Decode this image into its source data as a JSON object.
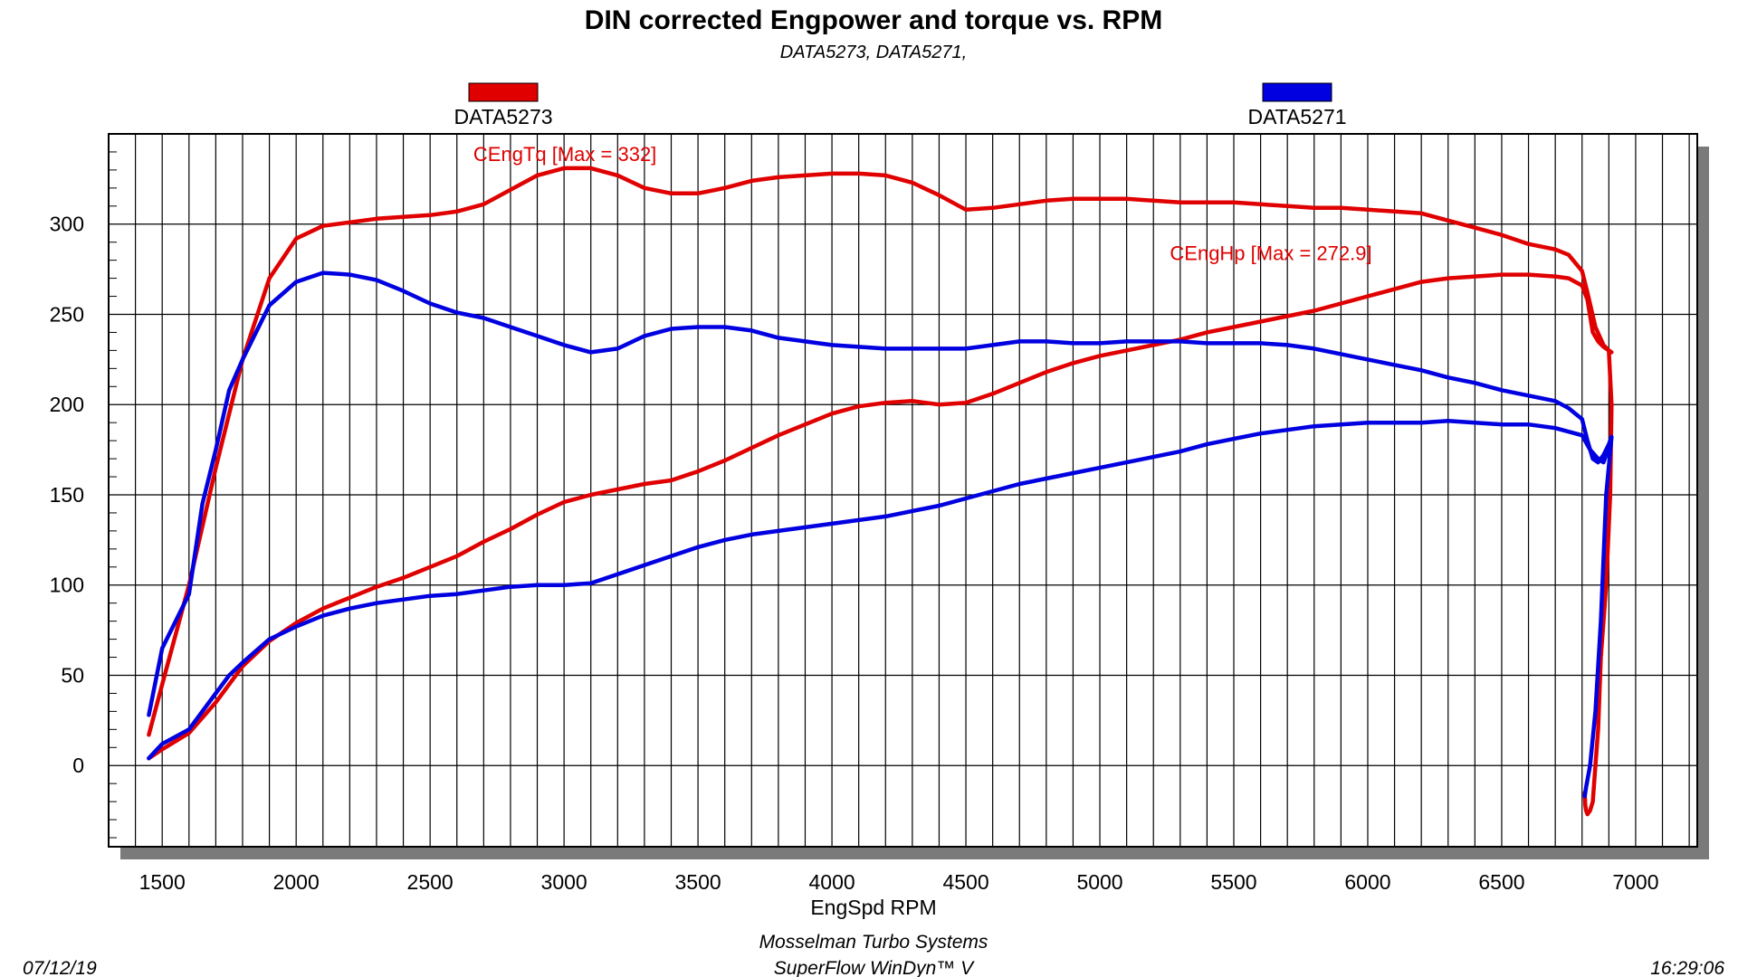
{
  "chart_data": {
    "type": "line",
    "title": "DIN corrected Engpower and torque vs. RPM",
    "subtitle": "DATA5273, DATA5271,",
    "xlabel": "EngSpd  RPM",
    "ylabel": "",
    "xlim": [
      1300,
      7230
    ],
    "ylim": [
      -45,
      350
    ],
    "xticks": [
      1500,
      2000,
      2500,
      3000,
      3500,
      4000,
      4500,
      5000,
      5500,
      6000,
      6500,
      7000
    ],
    "yticks": [
      0,
      50,
      100,
      150,
      200,
      250,
      300
    ],
    "grid": true,
    "legend": [
      {
        "name": "DATA5273",
        "color": "#e00000"
      },
      {
        "name": "DATA5271",
        "color": "#0000e0"
      }
    ],
    "annotations": [
      {
        "text": "CEngTq [Max = 332]",
        "x": 3050,
        "y": 332,
        "color": "#e00000"
      },
      {
        "text": "CEngHp [Max = 272.9]",
        "x": 5650,
        "y": 277,
        "color": "#e00000"
      }
    ],
    "series": [
      {
        "name": "DATA5273 CEngTq",
        "color": "#e00000",
        "x": [
          1450,
          1500,
          1600,
          1700,
          1800,
          1900,
          2000,
          2100,
          2200,
          2300,
          2400,
          2500,
          2600,
          2700,
          2800,
          2900,
          3000,
          3100,
          3200,
          3300,
          3400,
          3500,
          3600,
          3700,
          3800,
          3900,
          4000,
          4100,
          4200,
          4300,
          4400,
          4500,
          4600,
          4700,
          4800,
          4900,
          5000,
          5100,
          5200,
          5300,
          5400,
          5500,
          5600,
          5700,
          5800,
          5900,
          6000,
          6100,
          6200,
          6300,
          6400,
          6500,
          6600,
          6700,
          6750,
          6800,
          6820,
          6850,
          6880,
          6900,
          6910
        ],
        "values": [
          17,
          45,
          100,
          165,
          225,
          270,
          292,
          299,
          301,
          303,
          304,
          305,
          307,
          311,
          319,
          327,
          331,
          331,
          327,
          320,
          317,
          317,
          320,
          324,
          326,
          327,
          328,
          328,
          327,
          323,
          316,
          308,
          309,
          311,
          313,
          314,
          314,
          314,
          313,
          312,
          312,
          312,
          311,
          310,
          309,
          309,
          308,
          307,
          306,
          302,
          298,
          294,
          289,
          286,
          283,
          274,
          262,
          243,
          233,
          230,
          229
        ]
      },
      {
        "name": "DATA5273 CEngHp",
        "color": "#e00000",
        "x": [
          1450,
          1500,
          1600,
          1700,
          1800,
          1900,
          2000,
          2100,
          2200,
          2300,
          2400,
          2500,
          2600,
          2700,
          2800,
          2900,
          3000,
          3100,
          3200,
          3300,
          3400,
          3500,
          3600,
          3700,
          3800,
          3900,
          4000,
          4100,
          4200,
          4300,
          4400,
          4500,
          4600,
          4700,
          4800,
          4900,
          5000,
          5100,
          5200,
          5300,
          5400,
          5500,
          5600,
          5700,
          5800,
          5900,
          6000,
          6100,
          6200,
          6300,
          6400,
          6500,
          6600,
          6700,
          6750,
          6800,
          6820,
          6840,
          6860,
          6880,
          6900,
          6910,
          6905,
          6890,
          6870,
          6860,
          6850,
          6840,
          6830,
          6820,
          6815,
          6812,
          6810
        ],
        "values": [
          4,
          9,
          18,
          35,
          55,
          69,
          79,
          87,
          93,
          99,
          104,
          110,
          116,
          124,
          131,
          139,
          146,
          150,
          153,
          156,
          158,
          163,
          169,
          176,
          183,
          189,
          195,
          199,
          201,
          202,
          200,
          201,
          206,
          212,
          218,
          223,
          227,
          230,
          233,
          236,
          240,
          243,
          246,
          249,
          252,
          256,
          260,
          264,
          268,
          270,
          271,
          272,
          272,
          271,
          270,
          266,
          258,
          240,
          235,
          232,
          230,
          200,
          150,
          100,
          60,
          20,
          0,
          -20,
          -25,
          -27,
          -25,
          -22,
          -15
        ]
      },
      {
        "name": "DATA5271 CEngTq",
        "color": "#0000e0",
        "x": [
          1450,
          1500,
          1600,
          1650,
          1700,
          1750,
          1800,
          1900,
          2000,
          2100,
          2200,
          2300,
          2400,
          2500,
          2600,
          2700,
          2800,
          2900,
          3000,
          3100,
          3200,
          3300,
          3400,
          3500,
          3600,
          3700,
          3800,
          3900,
          4000,
          4100,
          4200,
          4300,
          4400,
          4500,
          4600,
          4700,
          4800,
          4900,
          5000,
          5100,
          5200,
          5300,
          5400,
          5500,
          5600,
          5700,
          5800,
          5900,
          6000,
          6100,
          6200,
          6300,
          6400,
          6500,
          6600,
          6700,
          6750,
          6800,
          6820,
          6840,
          6860,
          6880,
          6900,
          6910
        ],
        "values": [
          28,
          65,
          95,
          145,
          175,
          208,
          225,
          255,
          268,
          273,
          272,
          269,
          263,
          256,
          251,
          248,
          243,
          238,
          233,
          229,
          231,
          238,
          242,
          243,
          243,
          241,
          237,
          235,
          233,
          232,
          231,
          231,
          231,
          231,
          233,
          235,
          235,
          234,
          234,
          235,
          235,
          235,
          234,
          234,
          234,
          233,
          231,
          228,
          225,
          222,
          219,
          215,
          212,
          208,
          205,
          202,
          198,
          192,
          180,
          170,
          168,
          172,
          178,
          182
        ]
      },
      {
        "name": "DATA5271 CEngHp",
        "color": "#0000e0",
        "x": [
          1450,
          1500,
          1600,
          1700,
          1750,
          1800,
          1900,
          2000,
          2100,
          2200,
          2300,
          2400,
          2500,
          2600,
          2700,
          2800,
          2900,
          3000,
          3100,
          3200,
          3300,
          3400,
          3500,
          3600,
          3700,
          3800,
          3900,
          4000,
          4100,
          4200,
          4300,
          4400,
          4500,
          4600,
          4700,
          4800,
          4900,
          5000,
          5100,
          5200,
          5300,
          5400,
          5500,
          5600,
          5700,
          5800,
          5900,
          6000,
          6100,
          6200,
          6300,
          6400,
          6500,
          6600,
          6700,
          6750,
          6800,
          6830,
          6860,
          6880,
          6900,
          6910,
          6890,
          6870,
          6850,
          6830,
          6815,
          6810
        ],
        "values": [
          4,
          12,
          20,
          40,
          50,
          57,
          70,
          77,
          83,
          87,
          90,
          92,
          94,
          95,
          97,
          99,
          100,
          100,
          101,
          106,
          111,
          116,
          121,
          125,
          128,
          130,
          132,
          134,
          136,
          138,
          141,
          144,
          148,
          152,
          156,
          159,
          162,
          165,
          168,
          171,
          174,
          178,
          181,
          184,
          186,
          188,
          189,
          190,
          190,
          190,
          191,
          190,
          189,
          189,
          187,
          185,
          183,
          175,
          170,
          168,
          176,
          182,
          150,
          80,
          30,
          0,
          -12,
          -17
        ]
      }
    ],
    "footer": {
      "date": "07/12/19",
      "company": "Mosselman Turbo Systems",
      "software": "SuperFlow WinDyn™ V",
      "time": "16:29:06"
    }
  }
}
